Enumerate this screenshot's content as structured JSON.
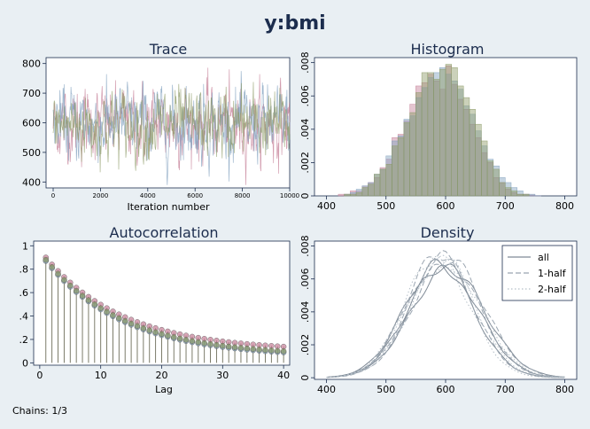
{
  "main_title": "y:bmi",
  "footnote": "Chains: 1/3",
  "colors": {
    "background": "#e9eff3",
    "plot_bg": "#ffffff",
    "title": "#1c2d4e",
    "chain1": "#c47e96",
    "chain2": "#7f9fbd",
    "chain3": "#8c9a66",
    "overall": "#7f8a96"
  },
  "chart_data": [
    {
      "panel": "trace",
      "type": "line",
      "title": "Trace",
      "xlabel": "Iteration number",
      "ylabel": "",
      "xlim": [
        -300,
        10000
      ],
      "ylim": [
        380,
        820
      ],
      "x_ticks": [
        0,
        2000,
        4000,
        6000,
        8000,
        10000
      ],
      "y_ticks": [
        400,
        500,
        600,
        700,
        800
      ],
      "iterations": 10000,
      "series": [
        {
          "mean": 596,
          "sd": 60
        },
        {
          "mean": 598,
          "sd": 60
        },
        {
          "mean": 594,
          "sd": 58
        }
      ]
    },
    {
      "panel": "histogram",
      "type": "bar",
      "title": "Histogram",
      "xlabel": "",
      "ylabel": "",
      "xlim": [
        380,
        820
      ],
      "ylim": [
        0,
        0.0083
      ],
      "x_ticks": [
        400,
        500,
        600,
        700,
        800
      ],
      "y_ticks": [
        0,
        0.002,
        0.004,
        0.006,
        0.008
      ],
      "y_tick_labels": [
        "0",
        ".002",
        ".004",
        ".006",
        ".008"
      ],
      "bin_start": 400,
      "bin_width": 10,
      "series": [
        {
          "values": [
            0,
            0,
            0.0001,
            0.0001,
            0.0003,
            0.0003,
            0.0006,
            0.0008,
            0.0011,
            0.0017,
            0.0022,
            0.0035,
            0.0037,
            0.0045,
            0.0055,
            0.0066,
            0.0068,
            0.0073,
            0.0069,
            0.0064,
            0.0078,
            0.0067,
            0.0058,
            0.0052,
            0.0043,
            0.0035,
            0.0026,
            0.002,
            0.0011,
            0.0008,
            0.0004,
            0.0002,
            0.0001,
            0.0001,
            5e-05,
            2e-05,
            0,
            0,
            0,
            0
          ]
        },
        {
          "values": [
            0,
            0,
            0,
            0.0001,
            0.0002,
            0.0004,
            0.0006,
            0.0008,
            0.0013,
            0.0016,
            0.0024,
            0.0033,
            0.0036,
            0.0046,
            0.0048,
            0.0059,
            0.0065,
            0.0071,
            0.0074,
            0.0077,
            0.0073,
            0.0069,
            0.0064,
            0.0054,
            0.0049,
            0.0039,
            0.003,
            0.0022,
            0.0018,
            0.0011,
            0.0008,
            0.0005,
            0.0003,
            0.0001,
            0.0001,
            2e-05,
            0,
            0,
            0,
            0
          ]
        },
        {
          "values": [
            0,
            0,
            0,
            0.0001,
            0.0001,
            0.0002,
            0.0005,
            0.0007,
            0.0013,
            0.0016,
            0.0019,
            0.003,
            0.0035,
            0.0044,
            0.005,
            0.0062,
            0.0074,
            0.0074,
            0.007,
            0.0076,
            0.0079,
            0.0077,
            0.0066,
            0.0059,
            0.0052,
            0.0043,
            0.0033,
            0.0021,
            0.0016,
            0.0008,
            0.0005,
            0.0003,
            0.0001,
            0.0001,
            0,
            0,
            0,
            0,
            0,
            0
          ]
        }
      ]
    },
    {
      "panel": "autocorrelation",
      "type": "scatter",
      "title": "Autocorrelation",
      "xlabel": "Lag",
      "ylabel": "",
      "xlim": [
        -1,
        41
      ],
      "ylim": [
        -0.02,
        1.04
      ],
      "x_ticks": [
        0,
        10,
        20,
        30,
        40
      ],
      "y_ticks": [
        0,
        0.2,
        0.4,
        0.6,
        0.8,
        1
      ],
      "y_tick_labels": [
        "0",
        ".2",
        ".4",
        ".6",
        ".8",
        "1"
      ],
      "lags": [
        1,
        40
      ],
      "series": [
        {
          "start": 0.9,
          "end": 0.1
        },
        {
          "start": 0.87,
          "end": 0.05
        },
        {
          "start": 0.88,
          "end": 0.06
        }
      ]
    },
    {
      "panel": "density",
      "type": "line",
      "title": "Density",
      "xlabel": "",
      "ylabel": "",
      "xlim": [
        380,
        820
      ],
      "ylim": [
        -0.0001,
        0.0083
      ],
      "x_ticks": [
        400,
        500,
        600,
        700,
        800
      ],
      "y_ticks": [
        0,
        0.002,
        0.004,
        0.006,
        0.008
      ],
      "y_tick_labels": [
        "0",
        ".002",
        ".004",
        ".006",
        ".008"
      ],
      "series": [
        {
          "name": "all",
          "mean": 596,
          "sd": 58,
          "peak": 0.0069,
          "style": "solid"
        },
        {
          "name": "1-half",
          "mean": 597,
          "sd": 56,
          "peak": 0.0075,
          "style": "dash"
        },
        {
          "name": "2-half",
          "mean": 593,
          "sd": 55,
          "peak": 0.0073,
          "style": "dot"
        }
      ],
      "legend_position": "top-right"
    }
  ]
}
